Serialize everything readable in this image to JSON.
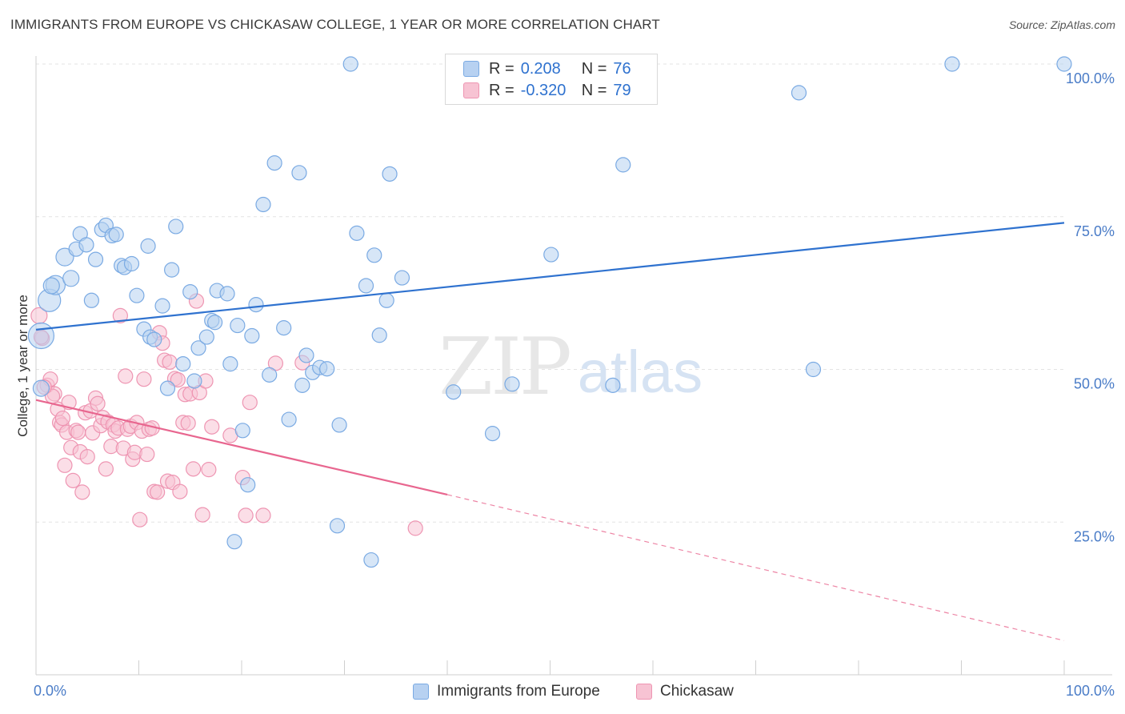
{
  "header": {
    "title": "IMMIGRANTS FROM EUROPE VS CHICKASAW COLLEGE, 1 YEAR OR MORE CORRELATION CHART",
    "source": "Source: ZipAtlas.com"
  },
  "watermark": {
    "zip": "ZIP",
    "atlas": "atlas"
  },
  "legend": {
    "rows": [
      {
        "r_label": "R =",
        "r_value": "0.208",
        "n_label": "N =",
        "n_value": "76",
        "color": "#7aaae3"
      },
      {
        "r_label": "R =",
        "r_value": "-0.320",
        "n_label": "N =",
        "n_value": "79",
        "color": "#f2a0b8"
      }
    ]
  },
  "colors": {
    "blue_fill": "#b7d1f1",
    "blue_stroke": "#7aaae3",
    "blue_line": "#2f72cf",
    "pink_fill": "#f7c3d3",
    "pink_stroke": "#ee95b2",
    "pink_line": "#e8668f",
    "axis_text": "#4a7cc7",
    "grid": "#e3e3e3"
  },
  "chart_data": {
    "type": "scatter",
    "title": "IMMIGRANTS FROM EUROPE VS CHICKASAW COLLEGE, 1 YEAR OR MORE CORRELATION CHART",
    "xlabel": "",
    "ylabel": "College, 1 year or more",
    "xlim": [
      0,
      100
    ],
    "ylim": [
      0,
      100
    ],
    "x_tick_labels": [
      "0.0%",
      "100.0%"
    ],
    "y_tick_labels": [
      "25.0%",
      "50.0%",
      "75.0%",
      "100.0%"
    ],
    "y_ticks": [
      25,
      50,
      75,
      100
    ],
    "grid": true,
    "legend_position": "top-center",
    "series": [
      {
        "name": "Immigrants from Europe",
        "r": 0.208,
        "n": 76,
        "trend": {
          "x0": 0,
          "y0": 56.5,
          "x1": 100,
          "y1": 74.0
        },
        "points": [
          [
            0.5,
            55.5,
            16
          ],
          [
            1.3,
            61.3,
            14
          ],
          [
            1.9,
            63.8,
            12
          ],
          [
            1.5,
            63.7,
            10
          ],
          [
            3.4,
            64.9,
            10
          ],
          [
            2.8,
            68.4,
            11
          ],
          [
            3.9,
            69.7,
            9
          ],
          [
            4.3,
            72.2,
            9
          ],
          [
            4.9,
            70.4,
            9
          ],
          [
            5.4,
            61.3,
            9
          ],
          [
            5.8,
            68.0,
            9
          ],
          [
            6.4,
            72.9,
            9
          ],
          [
            6.8,
            73.6,
            9
          ],
          [
            7.4,
            71.9,
            9
          ],
          [
            7.8,
            72.1,
            9
          ],
          [
            8.3,
            67.0,
            9
          ],
          [
            8.6,
            66.7,
            9
          ],
          [
            9.3,
            67.3,
            9
          ],
          [
            9.8,
            62.1,
            9
          ],
          [
            10.5,
            56.6,
            9
          ],
          [
            11.1,
            55.3,
            9
          ],
          [
            10.9,
            70.2,
            9
          ],
          [
            11.5,
            54.9,
            9
          ],
          [
            12.3,
            60.4,
            9
          ],
          [
            12.8,
            46.9,
            9
          ],
          [
            13.2,
            66.3,
            9
          ],
          [
            13.6,
            73.4,
            9
          ],
          [
            14.3,
            50.9,
            9
          ],
          [
            15.0,
            62.7,
            9
          ],
          [
            15.4,
            48.1,
            9
          ],
          [
            15.8,
            53.5,
            9
          ],
          [
            16.6,
            55.3,
            9
          ],
          [
            17.1,
            58.0,
            9
          ],
          [
            17.4,
            57.7,
            9
          ],
          [
            17.6,
            62.9,
            9
          ],
          [
            18.6,
            62.4,
            9
          ],
          [
            18.9,
            50.9,
            9
          ],
          [
            19.3,
            21.8,
            9
          ],
          [
            19.6,
            57.2,
            9
          ],
          [
            20.1,
            40.0,
            9
          ],
          [
            20.6,
            31.1,
            9
          ],
          [
            21.0,
            55.5,
            9
          ],
          [
            21.4,
            60.6,
            9
          ],
          [
            22.1,
            77.0,
            9
          ],
          [
            22.7,
            49.1,
            9
          ],
          [
            23.2,
            83.8,
            9
          ],
          [
            24.1,
            56.8,
            9
          ],
          [
            24.6,
            41.8,
            9
          ],
          [
            25.6,
            82.2,
            9
          ],
          [
            25.9,
            47.4,
            9
          ],
          [
            26.3,
            52.3,
            9
          ],
          [
            26.9,
            49.5,
            9
          ],
          [
            27.6,
            50.3,
            9
          ],
          [
            28.3,
            50.1,
            9
          ],
          [
            29.3,
            24.4,
            9
          ],
          [
            29.5,
            40.9,
            9
          ],
          [
            30.6,
            100.0,
            9
          ],
          [
            31.2,
            72.3,
            9
          ],
          [
            32.1,
            63.7,
            9
          ],
          [
            32.6,
            18.8,
            9
          ],
          [
            32.9,
            68.7,
            9
          ],
          [
            33.4,
            55.6,
            9
          ],
          [
            34.1,
            61.3,
            9
          ],
          [
            34.4,
            82.0,
            9
          ],
          [
            35.6,
            65.0,
            9
          ],
          [
            40.6,
            46.3,
            9
          ],
          [
            44.4,
            39.5,
            9
          ],
          [
            46.3,
            47.6,
            9
          ],
          [
            50.1,
            68.8,
            9
          ],
          [
            56.1,
            47.4,
            9
          ],
          [
            57.1,
            83.5,
            9
          ],
          [
            74.2,
            95.3,
            9
          ],
          [
            75.6,
            50.0,
            9
          ],
          [
            89.1,
            100.0,
            9
          ],
          [
            100.0,
            100.0,
            9
          ],
          [
            0.5,
            46.9,
            10
          ]
        ]
      },
      {
        "name": "Chickasaw",
        "r": -0.32,
        "n": 79,
        "trend": {
          "x0": 0,
          "y0": 45.0,
          "x1": 40.0,
          "y1": 29.5,
          "dash_x1": 100,
          "dash_y1": 5.6
        },
        "points": [
          [
            0.3,
            58.8,
            10
          ],
          [
            0.6,
            55.1,
            9
          ],
          [
            1.1,
            47.4,
            9
          ],
          [
            1.4,
            48.4,
            9
          ],
          [
            1.8,
            46.0,
            9
          ],
          [
            2.1,
            43.5,
            9
          ],
          [
            2.3,
            41.3,
            9
          ],
          [
            2.5,
            40.9,
            9
          ],
          [
            2.8,
            34.3,
            9
          ],
          [
            3.0,
            39.7,
            9
          ],
          [
            3.2,
            44.6,
            9
          ],
          [
            3.4,
            37.2,
            9
          ],
          [
            3.6,
            31.8,
            9
          ],
          [
            3.9,
            40.0,
            9
          ],
          [
            4.1,
            39.7,
            9
          ],
          [
            4.3,
            36.5,
            9
          ],
          [
            4.5,
            29.9,
            9
          ],
          [
            4.8,
            42.9,
            9
          ],
          [
            5.0,
            35.7,
            9
          ],
          [
            5.3,
            43.2,
            9
          ],
          [
            5.5,
            39.6,
            9
          ],
          [
            5.8,
            45.3,
            9
          ],
          [
            6.0,
            44.4,
            9
          ],
          [
            6.3,
            40.8,
            9
          ],
          [
            6.5,
            42.1,
            9
          ],
          [
            6.8,
            33.7,
            9
          ],
          [
            7.0,
            41.4,
            9
          ],
          [
            7.3,
            37.4,
            9
          ],
          [
            7.5,
            40.9,
            9
          ],
          [
            7.7,
            39.9,
            9
          ],
          [
            8.0,
            40.4,
            9
          ],
          [
            8.2,
            58.8,
            9
          ],
          [
            8.5,
            37.1,
            9
          ],
          [
            8.7,
            48.9,
            9
          ],
          [
            8.9,
            40.2,
            9
          ],
          [
            9.2,
            40.7,
            9
          ],
          [
            9.4,
            35.3,
            9
          ],
          [
            9.6,
            36.4,
            9
          ],
          [
            9.8,
            41.3,
            9
          ],
          [
            10.1,
            25.4,
            9
          ],
          [
            10.3,
            39.9,
            9
          ],
          [
            10.5,
            48.4,
            9
          ],
          [
            10.8,
            36.1,
            9
          ],
          [
            11.0,
            40.2,
            9
          ],
          [
            11.3,
            40.4,
            9
          ],
          [
            11.5,
            30.0,
            9
          ],
          [
            11.8,
            29.9,
            9
          ],
          [
            12.0,
            56.0,
            9
          ],
          [
            12.3,
            54.3,
            9
          ],
          [
            12.5,
            51.5,
            9
          ],
          [
            12.8,
            31.7,
            9
          ],
          [
            13.0,
            51.2,
            9
          ],
          [
            13.3,
            31.5,
            9
          ],
          [
            13.5,
            48.5,
            9
          ],
          [
            13.8,
            48.3,
            9
          ],
          [
            14.0,
            30.0,
            9
          ],
          [
            14.3,
            41.3,
            9
          ],
          [
            14.5,
            45.9,
            9
          ],
          [
            14.8,
            41.2,
            9
          ],
          [
            15.0,
            46.0,
            9
          ],
          [
            15.3,
            33.7,
            9
          ],
          [
            15.6,
            61.2,
            9
          ],
          [
            15.9,
            46.2,
            9
          ],
          [
            16.2,
            26.2,
            9
          ],
          [
            16.5,
            48.1,
            9
          ],
          [
            16.8,
            33.6,
            9
          ],
          [
            17.1,
            40.6,
            9
          ],
          [
            18.9,
            39.2,
            9
          ],
          [
            20.1,
            32.3,
            9
          ],
          [
            20.4,
            26.1,
            9
          ],
          [
            20.8,
            44.6,
            9
          ],
          [
            22.1,
            26.1,
            9
          ],
          [
            23.3,
            51.0,
            9
          ],
          [
            25.9,
            51.1,
            9
          ],
          [
            36.9,
            24.0,
            9
          ],
          [
            1.6,
            45.6,
            9
          ],
          [
            0.8,
            47.1,
            9
          ],
          [
            2.6,
            42.0,
            9
          ],
          [
            0.5,
            55.3,
            9
          ]
        ]
      }
    ]
  },
  "bottom_legend": {
    "series1": "Immigrants from Europe",
    "series2": "Chickasaw"
  }
}
